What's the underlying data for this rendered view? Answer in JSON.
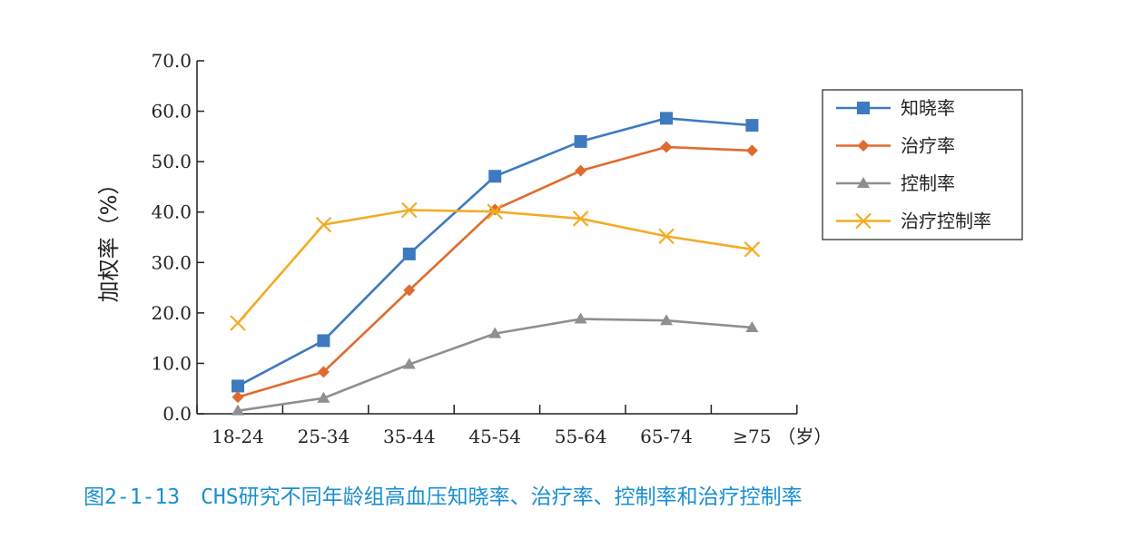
{
  "figure": {
    "caption": "图2-1-13　CHS研究不同年龄组高血压知晓率、治疗率、控制率和治疗控制率"
  },
  "chart_data": {
    "type": "line",
    "title": "",
    "xlabel": "",
    "x_unit": "（岁）",
    "ylabel": "加权率（%）",
    "ylim": [
      0,
      70
    ],
    "yticks": [
      "0.0",
      "10.0",
      "20.0",
      "30.0",
      "40.0",
      "50.0",
      "60.0",
      "70.0"
    ],
    "categories": [
      "18-24",
      "25-34",
      "35-44",
      "45-54",
      "55-64",
      "65-74",
      "≥75"
    ],
    "grid": false,
    "legend_position": "top-right",
    "series": [
      {
        "name": "知晓率",
        "color": "#3d7abf",
        "marker": "square",
        "values": [
          5.5,
          14.5,
          31.7,
          47.1,
          54.0,
          58.6,
          57.2
        ]
      },
      {
        "name": "治疗率",
        "color": "#e06b2e",
        "marker": "diamond",
        "values": [
          3.3,
          8.3,
          24.5,
          40.5,
          48.2,
          52.9,
          52.2
        ]
      },
      {
        "name": "控制率",
        "color": "#8f8f8f",
        "marker": "triangle",
        "values": [
          0.6,
          3.1,
          9.8,
          15.9,
          18.8,
          18.5,
          17.1
        ]
      },
      {
        "name": "治疗控制率",
        "color": "#f2ac24",
        "marker": "cross",
        "values": [
          18.0,
          37.5,
          40.4,
          40.1,
          38.7,
          35.2,
          32.6
        ]
      }
    ]
  }
}
